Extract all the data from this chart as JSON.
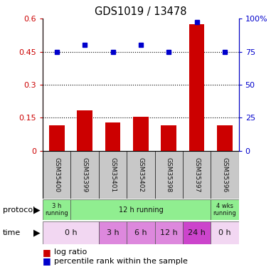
{
  "title": "GDS1019 / 13478",
  "samples": [
    "GSM35400",
    "GSM35399",
    "GSM35401",
    "GSM35402",
    "GSM35398",
    "GSM35397",
    "GSM35396"
  ],
  "log_ratio": [
    0.115,
    0.185,
    0.13,
    0.155,
    0.115,
    0.575,
    0.115
  ],
  "percentile_rank": [
    0.45,
    0.48,
    0.45,
    0.48,
    0.45,
    0.585,
    0.45
  ],
  "bar_color": "#cc0000",
  "dot_color": "#0000cc",
  "left_ylim": [
    0,
    0.6
  ],
  "left_yticks": [
    0,
    0.15,
    0.3,
    0.45,
    0.6
  ],
  "left_yticklabels": [
    "0",
    "0.15",
    "0.3",
    "0.45",
    "0.6"
  ],
  "right_yticks": [
    0,
    0.25,
    0.5,
    0.75,
    1.0
  ],
  "right_yticklabels": [
    "0",
    "25",
    "50",
    "75",
    "100%"
  ],
  "hlines": [
    0.15,
    0.3,
    0.45
  ],
  "sample_bg": "#c8c8c8",
  "proto_info": [
    [
      0,
      1,
      "3 h\nrunning",
      "#90ee90"
    ],
    [
      1,
      6,
      "12 h running",
      "#90ee90"
    ],
    [
      6,
      7,
      "4 wks\nrunning",
      "#90ee90"
    ]
  ],
  "time_info": [
    [
      0,
      2,
      "0 h",
      "#f2d7f2"
    ],
    [
      2,
      3,
      "3 h",
      "#dd88dd"
    ],
    [
      3,
      4,
      "6 h",
      "#dd88dd"
    ],
    [
      4,
      5,
      "12 h",
      "#dd88dd"
    ],
    [
      5,
      6,
      "24 h",
      "#cc44cc"
    ],
    [
      6,
      7,
      "0 h",
      "#f2d7f2"
    ]
  ]
}
